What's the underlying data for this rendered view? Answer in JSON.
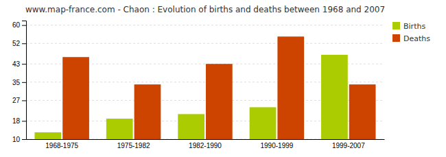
{
  "chart_data": {
    "type": "bar",
    "title": "www.map-france.com - Chaon : Evolution of births and deaths between 1968 and 2007",
    "categories": [
      "1968-1975",
      "1975-1982",
      "1982-1990",
      "1990-1999",
      "1999-2007"
    ],
    "series": [
      {
        "name": "Births",
        "color": "#aacc00",
        "values": [
          13,
          19,
          21,
          24,
          47
        ]
      },
      {
        "name": "Deaths",
        "color": "#cc4400",
        "values": [
          46,
          34,
          43,
          55,
          34
        ]
      }
    ],
    "ylim": [
      10,
      62
    ],
    "yticks": [
      10,
      18,
      27,
      35,
      43,
      52,
      60
    ],
    "grid": true,
    "legend": "upper right"
  }
}
